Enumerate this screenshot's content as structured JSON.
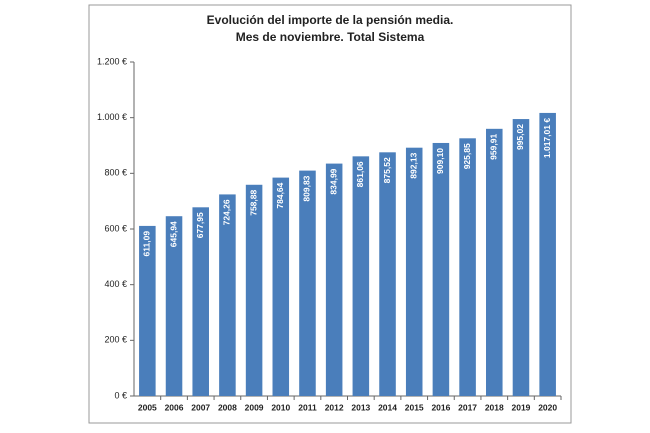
{
  "chart_data": {
    "type": "bar",
    "title": "Evolución del importe de la pensión media.",
    "subtitle": "Mes de noviembre. Total Sistema",
    "categories": [
      "2005",
      "2006",
      "2007",
      "2008",
      "2009",
      "2010",
      "2011",
      "2012",
      "2013",
      "2014",
      "2015",
      "2016",
      "2017",
      "2018",
      "2019",
      "2020"
    ],
    "values": [
      611.09,
      645.94,
      677.95,
      724.26,
      758.88,
      784.64,
      809.83,
      834.99,
      861.06,
      875.52,
      892.13,
      909.1,
      925.85,
      959.91,
      995.02,
      1017.01
    ],
    "value_labels": [
      "611,09",
      "645,94",
      "677,95",
      "724,26",
      "758,88",
      "784,64",
      "809,83",
      "834,99",
      "861,06",
      "875,52",
      "892,13",
      "909,10",
      "925,85",
      "959,91",
      "995,02",
      "1.017,01 €"
    ],
    "color": "#4a7ebb",
    "ylim": [
      0,
      1200
    ],
    "yticks": [
      {
        "value": 0,
        "label": "0 €"
      },
      {
        "value": 200,
        "label": "200 €"
      },
      {
        "value": 400,
        "label": "400 €"
      },
      {
        "value": 600,
        "label": "600 €"
      },
      {
        "value": 800,
        "label": "800 €"
      },
      {
        "value": 1000,
        "label": "1.000 €"
      },
      {
        "value": 1200,
        "label": "1.200 €"
      }
    ],
    "grid": false
  }
}
